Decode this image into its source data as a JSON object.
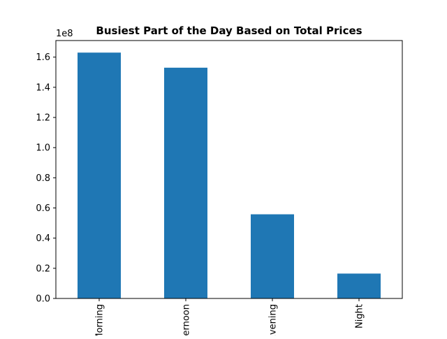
{
  "chart_data": {
    "type": "bar",
    "title": "Busiest Part of the Day Based on Total Prices",
    "xlabel": "",
    "ylabel": "",
    "categories": [
      "Morning",
      "Afternoon",
      "Evening",
      "Night"
    ],
    "values": [
      163000000,
      153000000,
      55800000,
      16500000
    ],
    "ylim": [
      0,
      171000000
    ],
    "y_ticks": [
      0,
      20000000,
      40000000,
      60000000,
      80000000,
      100000000,
      120000000,
      140000000,
      160000000
    ],
    "y_tick_labels": [
      "0.0",
      "0.2",
      "0.4",
      "0.6",
      "0.8",
      "1.0",
      "1.2",
      "1.4",
      "1.6"
    ],
    "y_offset_label": "1e8",
    "grid": false,
    "legend": "none",
    "bar_color": "#1f77b4"
  }
}
